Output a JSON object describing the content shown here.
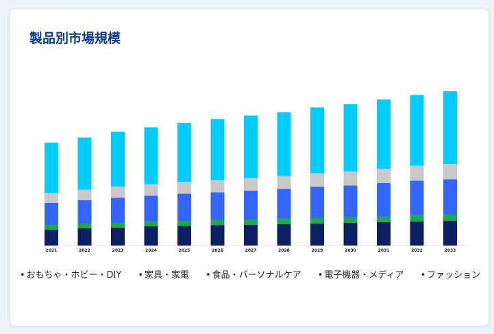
{
  "card": {
    "title": "製品別市場規模"
  },
  "chart_data": {
    "type": "stacked-bar",
    "categories": [
      "2021",
      "2022",
      "2023",
      "2024",
      "2025",
      "2026",
      "2027",
      "2028",
      "2029",
      "2030",
      "2031",
      "2032",
      "2033"
    ],
    "ylim": [
      0,
      230
    ],
    "grid": false,
    "legend_position": "bottom",
    "series": [
      {
        "name": "おもちゃ・ホビー・DIY",
        "color": "#0d1f63",
        "values": [
          23,
          25,
          26,
          28,
          28.5,
          29.5,
          30,
          31,
          32,
          33,
          34,
          35,
          36
        ]
      },
      {
        "name": "家具・家電",
        "color": "#1fa84d",
        "values": [
          7,
          7,
          7.5,
          7.5,
          8,
          8,
          8,
          8.5,
          8.5,
          8.5,
          9,
          9.5,
          9.5
        ]
      },
      {
        "name": "食品・パーソナルケア",
        "color": "#3366ff",
        "values": [
          32,
          34,
          36,
          37,
          39,
          40,
          42,
          43,
          45,
          46,
          48,
          50,
          51
        ]
      },
      {
        "name": "電子機器・メディア",
        "color": "#c9c9c9",
        "values": [
          15,
          15.5,
          16.5,
          17,
          17.5,
          18,
          18.5,
          19,
          20,
          20.5,
          21,
          22,
          22.5
        ]
      },
      {
        "name": "ファッション",
        "color": "#00ccff",
        "values": [
          73,
          76,
          80,
          83,
          86,
          89,
          91,
          93,
          96,
          98,
          101,
          103,
          106
        ]
      }
    ]
  }
}
